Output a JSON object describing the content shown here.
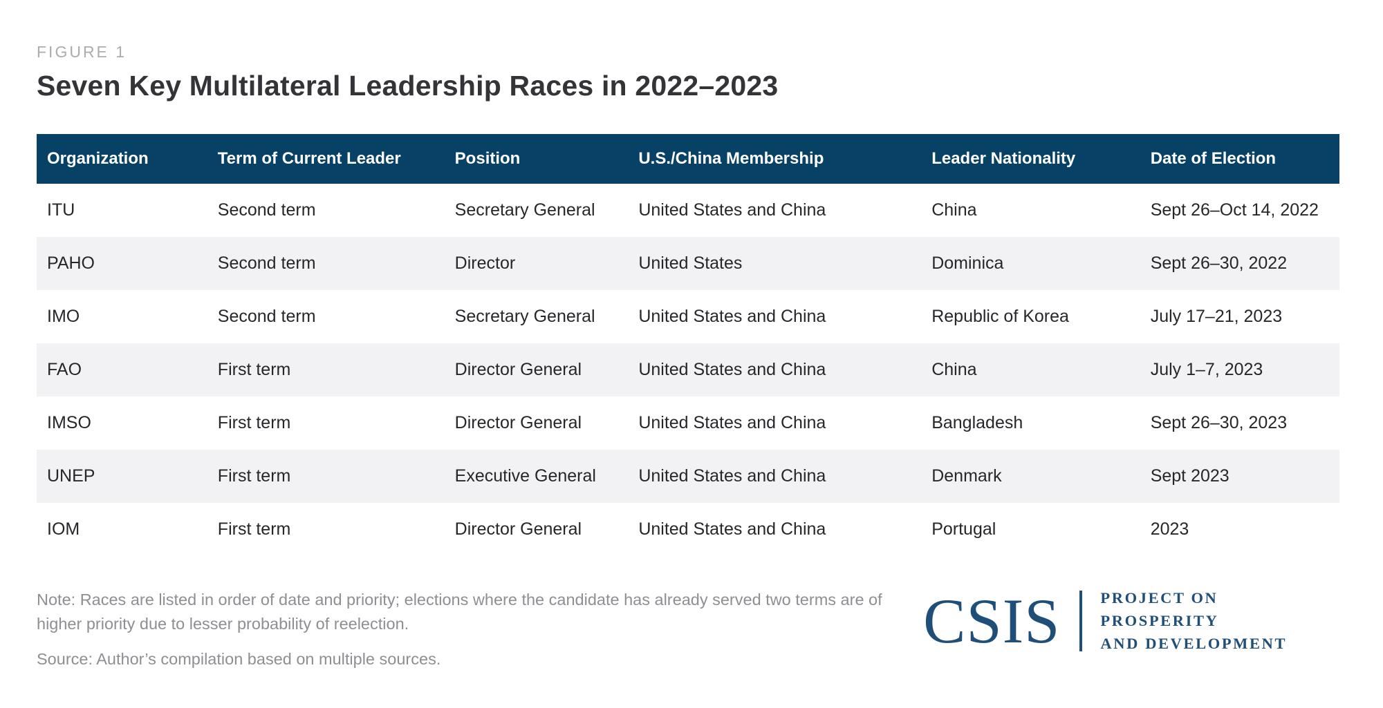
{
  "figure": {
    "label": "FIGURE 1",
    "title": "Seven Key Multilateral Leadership Races in 2022–2023"
  },
  "table": {
    "headers": [
      "Organization",
      "Term of Current Leader",
      "Position",
      "U.S./China Membership",
      "Leader Nationality",
      "Date of Election"
    ],
    "rows": [
      [
        "ITU",
        "Second term",
        "Secretary General",
        "United States and China",
        "China",
        "Sept 26–Oct 14, 2022"
      ],
      [
        "PAHO",
        "Second term",
        "Director",
        "United States",
        "Dominica",
        "Sept 26–30, 2022"
      ],
      [
        "IMO",
        "Second term",
        "Secretary General",
        "United States and China",
        "Republic of Korea",
        "July 17–21, 2023"
      ],
      [
        "FAO",
        "First term",
        "Director General",
        "United States and China",
        "China",
        "July 1–7, 2023"
      ],
      [
        "IMSO",
        "First term",
        "Director General",
        "United States and China",
        "Bangladesh",
        "Sept 26–30, 2023"
      ],
      [
        "UNEP",
        "First term",
        "Executive General",
        "United States and China",
        "Denmark",
        "Sept 2023"
      ],
      [
        "IOM",
        "First term",
        "Director General",
        "United States and China",
        "Portugal",
        "2023"
      ]
    ]
  },
  "footer": {
    "note": "Note: Races are listed in order of date and priority; elections where the candidate has already served two terms are of higher priority due to lesser probability of reelection.",
    "source": "Source: Author’s compilation based on multiple sources.",
    "logo": {
      "wordmark": "CSIS",
      "program_line1": "PROJECT ON PROSPERITY",
      "program_line2": "AND DEVELOPMENT"
    }
  },
  "colors": {
    "header_bg": "#074266",
    "row_alt_bg": "#f2f2f4",
    "logo_navy": "#1f4e79",
    "title_color": "#333338",
    "figure_label_gray": "#ababb0",
    "note_gray": "#8e8e93"
  }
}
